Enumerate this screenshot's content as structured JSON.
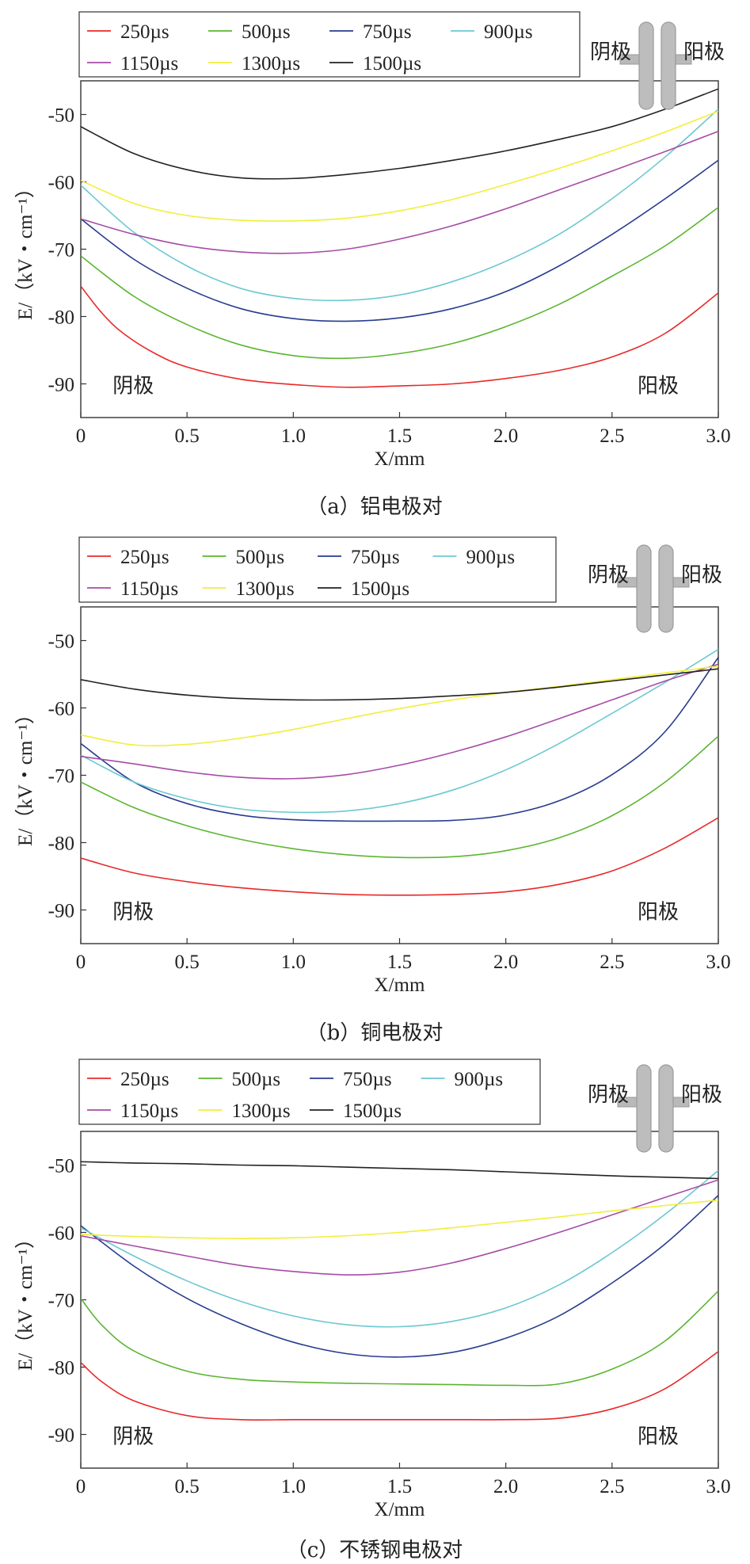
{
  "colors": {
    "250µs": "#e8292a",
    "500µs": "#5cb531",
    "750µs": "#283c8f",
    "900µs": "#6cc8d2",
    "1150µs": "#a64ca6",
    "1300µs": "#f2ee3a",
    "1500µs": "#222222"
  },
  "legend_labels": [
    "250µs",
    "500µs",
    "750µs",
    "900µs",
    "1150µs",
    "1300µs",
    "1500µs"
  ],
  "inset": {
    "cathode": "阴极",
    "anode": "阳极"
  },
  "chart_data": [
    {
      "type": "line",
      "caption": "（a）铝电极对",
      "xlabel": "X/mm",
      "ylabel": "E/（kV・cm⁻¹）",
      "xlim": [
        0,
        3.0
      ],
      "ylim": [
        -95,
        -45
      ],
      "xticks": [
        "0",
        "0.5",
        "1.0",
        "1.5",
        "2.0",
        "2.5",
        "3.0"
      ],
      "yticks": [
        "-50",
        "-60",
        "-70",
        "-80",
        "-90"
      ],
      "annotations": {
        "left": "阴极",
        "right": "阳极"
      },
      "series": [
        {
          "name": "250µs",
          "x": [
            0,
            0.1,
            0.2,
            0.35,
            0.5,
            0.75,
            1.0,
            1.25,
            1.5,
            1.75,
            2.0,
            2.25,
            2.5,
            2.75,
            3.0
          ],
          "y": [
            -75.5,
            -79.5,
            -82.5,
            -85.5,
            -87.5,
            -89.3,
            -90.1,
            -90.5,
            -90.3,
            -90.0,
            -89.2,
            -88.0,
            -86.0,
            -82.5,
            -76.5
          ]
        },
        {
          "name": "500µs",
          "x": [
            0,
            0.25,
            0.5,
            0.75,
            1.0,
            1.25,
            1.5,
            1.75,
            2.0,
            2.25,
            2.5,
            2.75,
            3.0
          ],
          "y": [
            -71.0,
            -77.0,
            -81.2,
            -84.2,
            -85.8,
            -86.2,
            -85.5,
            -84.0,
            -81.5,
            -78.2,
            -74.0,
            -69.5,
            -63.8
          ]
        },
        {
          "name": "750µs",
          "x": [
            0,
            0.25,
            0.5,
            0.75,
            1.0,
            1.25,
            1.5,
            1.75,
            2.0,
            2.25,
            2.5,
            2.75,
            3.0
          ],
          "y": [
            -65.5,
            -71.5,
            -75.8,
            -78.8,
            -80.3,
            -80.7,
            -80.2,
            -78.8,
            -76.3,
            -72.5,
            -67.8,
            -62.5,
            -56.8
          ]
        },
        {
          "name": "900µs",
          "x": [
            0,
            0.25,
            0.5,
            0.75,
            1.0,
            1.25,
            1.5,
            1.75,
            2.0,
            2.25,
            2.5,
            2.75,
            3.0
          ],
          "y": [
            -60.5,
            -67.5,
            -72.5,
            -75.8,
            -77.3,
            -77.6,
            -76.8,
            -74.8,
            -71.8,
            -67.8,
            -62.5,
            -56.3,
            -49.2
          ]
        },
        {
          "name": "1150µs",
          "x": [
            0,
            0.25,
            0.5,
            0.75,
            1.0,
            1.25,
            1.5,
            1.75,
            2.0,
            2.25,
            2.5,
            2.75,
            3.0
          ],
          "y": [
            -65.5,
            -67.8,
            -69.5,
            -70.4,
            -70.6,
            -70.0,
            -68.5,
            -66.5,
            -64.0,
            -61.2,
            -58.4,
            -55.5,
            -52.5
          ]
        },
        {
          "name": "1300µs",
          "x": [
            0,
            0.25,
            0.5,
            0.75,
            1.0,
            1.25,
            1.5,
            1.75,
            2.0,
            2.25,
            2.5,
            2.75,
            3.0
          ],
          "y": [
            -59.8,
            -63.2,
            -65.0,
            -65.7,
            -65.8,
            -65.4,
            -64.3,
            -62.6,
            -60.4,
            -58.0,
            -55.4,
            -52.6,
            -49.5
          ]
        },
        {
          "name": "1500µs",
          "x": [
            0,
            0.25,
            0.5,
            0.75,
            1.0,
            1.25,
            1.5,
            1.75,
            2.0,
            2.25,
            2.5,
            2.75,
            3.0
          ],
          "y": [
            -51.8,
            -55.8,
            -58.2,
            -59.4,
            -59.5,
            -58.9,
            -58.0,
            -56.8,
            -55.4,
            -53.7,
            -51.8,
            -49.2,
            -46.2
          ]
        }
      ]
    },
    {
      "type": "line",
      "caption": "（b）铜电极对",
      "xlabel": "X/mm",
      "ylabel": "E/（kV・cm⁻¹）",
      "xlim": [
        0,
        3.0
      ],
      "ylim": [
        -95,
        -45
      ],
      "xticks": [
        "0",
        "0.5",
        "1.0",
        "1.5",
        "2.0",
        "2.5",
        "3.0"
      ],
      "yticks": [
        "-50",
        "-60",
        "-70",
        "-80",
        "-90"
      ],
      "annotations": {
        "left": "阴极",
        "right": "阳极"
      },
      "series": [
        {
          "name": "250µs",
          "x": [
            0,
            0.25,
            0.5,
            0.75,
            1.0,
            1.25,
            1.5,
            1.75,
            2.0,
            2.25,
            2.5,
            2.75,
            3.0
          ],
          "y": [
            -82.3,
            -84.5,
            -85.8,
            -86.7,
            -87.3,
            -87.7,
            -87.8,
            -87.7,
            -87.3,
            -86.2,
            -84.2,
            -80.8,
            -76.3
          ]
        },
        {
          "name": "500µs",
          "x": [
            0,
            0.25,
            0.5,
            0.75,
            1.0,
            1.25,
            1.5,
            1.75,
            2.0,
            2.25,
            2.5,
            2.75,
            3.0
          ],
          "y": [
            -71.0,
            -74.8,
            -77.5,
            -79.5,
            -80.9,
            -81.8,
            -82.2,
            -82.1,
            -81.2,
            -79.3,
            -76.0,
            -71.0,
            -64.2
          ]
        },
        {
          "name": "750µs",
          "x": [
            0,
            0.25,
            0.5,
            0.75,
            1.0,
            1.25,
            1.5,
            1.75,
            2.0,
            2.25,
            2.5,
            2.75,
            3.0
          ],
          "y": [
            -65.3,
            -71.0,
            -74.2,
            -75.9,
            -76.6,
            -76.8,
            -76.8,
            -76.7,
            -75.9,
            -73.8,
            -69.9,
            -63.5,
            -52.5
          ]
        },
        {
          "name": "900µs",
          "x": [
            0,
            0.25,
            0.5,
            0.75,
            1.0,
            1.25,
            1.5,
            1.75,
            2.0,
            2.25,
            2.5,
            2.75,
            3.0
          ],
          "y": [
            -67.0,
            -71.0,
            -73.5,
            -75.0,
            -75.5,
            -75.3,
            -74.2,
            -72.2,
            -69.2,
            -65.3,
            -60.8,
            -56.2,
            -51.3
          ]
        },
        {
          "name": "1150µs",
          "x": [
            0,
            0.25,
            0.5,
            0.75,
            1.0,
            1.25,
            1.5,
            1.75,
            2.0,
            2.25,
            2.5,
            2.75,
            3.0
          ],
          "y": [
            -67.2,
            -68.3,
            -69.5,
            -70.3,
            -70.5,
            -69.9,
            -68.5,
            -66.6,
            -64.3,
            -61.6,
            -58.8,
            -56.0,
            -53.5
          ]
        },
        {
          "name": "1300µs",
          "x": [
            0,
            0.25,
            0.5,
            0.75,
            1.0,
            1.25,
            1.5,
            1.75,
            2.0,
            2.25,
            2.5,
            2.75,
            3.0
          ],
          "y": [
            -64.0,
            -65.5,
            -65.4,
            -64.5,
            -63.2,
            -61.6,
            -60.1,
            -58.8,
            -57.7,
            -56.8,
            -55.8,
            -54.8,
            -53.8
          ]
        },
        {
          "name": "1500µs",
          "x": [
            0,
            0.25,
            0.5,
            0.75,
            1.0,
            1.25,
            1.5,
            1.75,
            2.0,
            2.25,
            2.5,
            2.75,
            3.0
          ],
          "y": [
            -55.8,
            -57.2,
            -58.1,
            -58.6,
            -58.8,
            -58.8,
            -58.6,
            -58.2,
            -57.7,
            -56.9,
            -56.0,
            -55.1,
            -54.2
          ]
        }
      ]
    },
    {
      "type": "line",
      "caption": "（c）不锈钢电极对",
      "xlabel": "X/mm",
      "ylabel": "E/（kV・cm⁻¹）",
      "xlim": [
        0,
        3.0
      ],
      "ylim": [
        -95,
        -45
      ],
      "xticks": [
        "0",
        "0.5",
        "1.0",
        "1.5",
        "2.0",
        "2.5",
        "3.0"
      ],
      "yticks": [
        "-50",
        "-60",
        "-70",
        "-80",
        "-90"
      ],
      "annotations": {
        "left": "阴极",
        "right": "阳极"
      },
      "series": [
        {
          "name": "250µs",
          "x": [
            0,
            0.1,
            0.25,
            0.5,
            0.75,
            1.0,
            1.25,
            1.5,
            1.75,
            2.0,
            2.25,
            2.5,
            2.75,
            3.0
          ],
          "y": [
            -79.3,
            -82.2,
            -85.0,
            -87.2,
            -87.8,
            -87.8,
            -87.8,
            -87.8,
            -87.8,
            -87.8,
            -87.6,
            -86.2,
            -83.2,
            -77.7
          ]
        },
        {
          "name": "500µs",
          "x": [
            0,
            0.1,
            0.25,
            0.5,
            0.75,
            1.0,
            1.25,
            1.5,
            1.75,
            2.0,
            2.25,
            2.5,
            2.75,
            3.0
          ],
          "y": [
            -69.8,
            -73.8,
            -77.6,
            -80.6,
            -81.8,
            -82.2,
            -82.4,
            -82.5,
            -82.6,
            -82.7,
            -82.5,
            -80.3,
            -76.1,
            -68.7
          ]
        },
        {
          "name": "750µs",
          "x": [
            0,
            0.25,
            0.5,
            0.75,
            1.0,
            1.25,
            1.5,
            1.75,
            2.0,
            2.25,
            2.5,
            2.75,
            3.0
          ],
          "y": [
            -59.0,
            -65.0,
            -69.8,
            -73.5,
            -76.3,
            -78.0,
            -78.5,
            -77.8,
            -75.7,
            -72.4,
            -67.5,
            -61.7,
            -54.5
          ]
        },
        {
          "name": "900µs",
          "x": [
            0,
            0.25,
            0.5,
            0.75,
            1.0,
            1.25,
            1.5,
            1.75,
            2.0,
            2.25,
            2.5,
            2.75,
            3.0
          ],
          "y": [
            -59.3,
            -63.5,
            -67.2,
            -70.2,
            -72.4,
            -73.7,
            -74.0,
            -73.2,
            -71.2,
            -67.8,
            -63.0,
            -57.3,
            -50.8
          ]
        },
        {
          "name": "1150µs",
          "x": [
            0,
            0.25,
            0.5,
            0.75,
            1.0,
            1.25,
            1.5,
            1.75,
            2.0,
            2.25,
            2.5,
            2.75,
            3.0
          ],
          "y": [
            -60.5,
            -62.0,
            -63.5,
            -64.9,
            -65.8,
            -66.3,
            -65.9,
            -64.5,
            -62.4,
            -60.0,
            -57.4,
            -54.8,
            -52.2
          ]
        },
        {
          "name": "1300µs",
          "x": [
            0,
            0.25,
            0.5,
            0.75,
            1.0,
            1.25,
            1.5,
            1.75,
            2.0,
            2.25,
            2.5,
            2.75,
            3.0
          ],
          "y": [
            -60.3,
            -60.6,
            -60.8,
            -60.9,
            -60.8,
            -60.5,
            -60.0,
            -59.3,
            -58.5,
            -57.7,
            -56.8,
            -56.0,
            -55.2
          ]
        },
        {
          "name": "1500µs",
          "x": [
            0,
            0.25,
            0.5,
            0.75,
            1.0,
            1.25,
            1.5,
            1.75,
            2.0,
            2.25,
            2.5,
            2.75,
            3.0
          ],
          "y": [
            -49.5,
            -49.7,
            -49.8,
            -50.0,
            -50.1,
            -50.3,
            -50.5,
            -50.7,
            -51.0,
            -51.3,
            -51.6,
            -51.8,
            -52.0
          ]
        }
      ]
    }
  ]
}
